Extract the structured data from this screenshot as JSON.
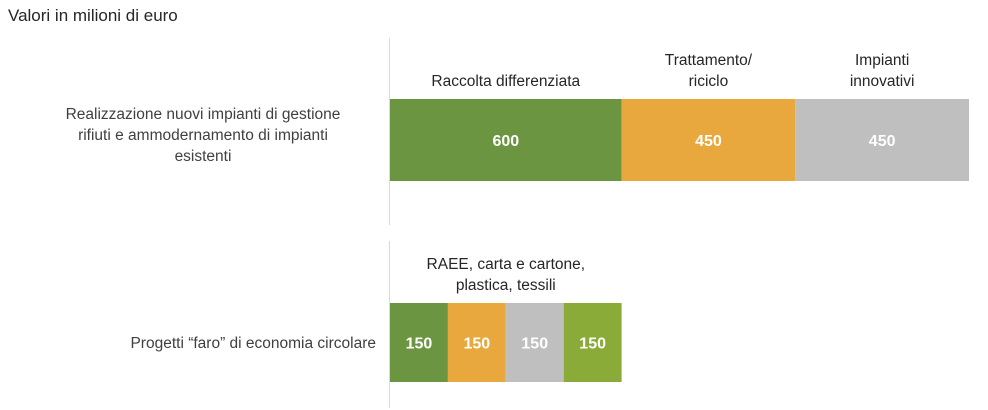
{
  "subtitle": "Valori in milioni di euro",
  "colors": {
    "green": "#6b9540",
    "orange": "#e8a83e",
    "gray": "#bfbfbf",
    "lightgreen": "#8aab38",
    "axis": "#d9d9d9"
  },
  "chart_data": {
    "type": "bar",
    "orientation": "horizontal",
    "stacked": true,
    "subtitle": "Valori in milioni di euro",
    "categories": [
      "Realizzazione nuovi impianti di gestione rifiuti e ammodernamento di impianti esistenti",
      "Progetti “faro” di economia circolare"
    ],
    "category_lines": [
      [
        "Realizzazione nuovi impianti di gestione",
        "rifiuti e ammodernamento di impianti",
        "esistenti"
      ],
      [
        "Progetti “faro” di economia circolare"
      ]
    ],
    "series": [
      {
        "values": [
          600,
          150
        ],
        "color": "green"
      },
      {
        "values": [
          450,
          150
        ],
        "color": "orange"
      },
      {
        "values": [
          450,
          150
        ],
        "color": "gray"
      },
      {
        "values": [
          0,
          150
        ],
        "color": "lightgreen"
      }
    ],
    "segment_labels": [
      {
        "bar": 0,
        "segment": 0,
        "lines": [
          "Raccolta differenziata"
        ]
      },
      {
        "bar": 0,
        "segment": 1,
        "lines": [
          "Trattamento/",
          "riciclo"
        ]
      },
      {
        "bar": 0,
        "segment": 2,
        "lines": [
          "Impianti",
          "innovativi"
        ]
      },
      {
        "bar": 1,
        "span": [
          0,
          3
        ],
        "lines": [
          "RAEE, carta e cartone,",
          "plastica, tessili"
        ]
      }
    ],
    "xlim": [
      0,
      1500
    ],
    "grid": false,
    "legend": "none"
  }
}
